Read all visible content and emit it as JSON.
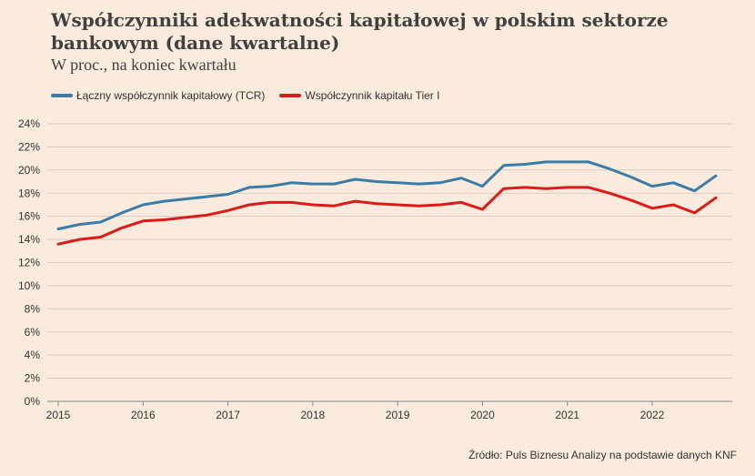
{
  "title": "Współczynniki adekwatności kapitałowej w polskim sektorze bankowym (dane kwartalne)",
  "subtitle": "W proc., na koniec kwartału",
  "source": "Źródło: Puls Biznesu Analizy na podstawie danych KNF",
  "chart_data": {
    "type": "line",
    "x_tick_labels": [
      "2015",
      "2016",
      "2017",
      "2018",
      "2019",
      "2020",
      "2021",
      "2022"
    ],
    "x_start_year": 2015,
    "ylim": [
      0,
      24
    ],
    "y_ticks": [
      0,
      2,
      4,
      6,
      8,
      10,
      12,
      14,
      16,
      18,
      20,
      22,
      24
    ],
    "y_tick_labels": [
      "0%",
      "2%",
      "4%",
      "6%",
      "8%",
      "10%",
      "12%",
      "14%",
      "16%",
      "18%",
      "20%",
      "22%",
      "24%"
    ],
    "grid": true,
    "legend_position": "top-left",
    "series": [
      {
        "name": "Łączny współczynnik kapitałowy (TCR)",
        "color": "#3a7ca5",
        "values": [
          14.9,
          15.3,
          15.5,
          16.3,
          17.0,
          17.3,
          17.5,
          17.7,
          17.9,
          18.5,
          18.6,
          18.9,
          18.8,
          18.8,
          19.2,
          19.0,
          18.9,
          18.8,
          18.9,
          19.3,
          18.6,
          20.4,
          20.5,
          20.7,
          20.7,
          20.7,
          20.1,
          19.4,
          18.6,
          18.9,
          18.2,
          19.5
        ]
      },
      {
        "name": "Współczynnik kapitału Tier I",
        "color": "#dd1a1a",
        "values": [
          13.6,
          14.0,
          14.2,
          15.0,
          15.6,
          15.7,
          15.9,
          16.1,
          16.5,
          17.0,
          17.2,
          17.2,
          17.0,
          16.9,
          17.3,
          17.1,
          17.0,
          16.9,
          17.0,
          17.2,
          16.6,
          18.4,
          18.5,
          18.4,
          18.5,
          18.5,
          18.0,
          17.4,
          16.7,
          17.0,
          16.3,
          17.6
        ]
      }
    ]
  }
}
